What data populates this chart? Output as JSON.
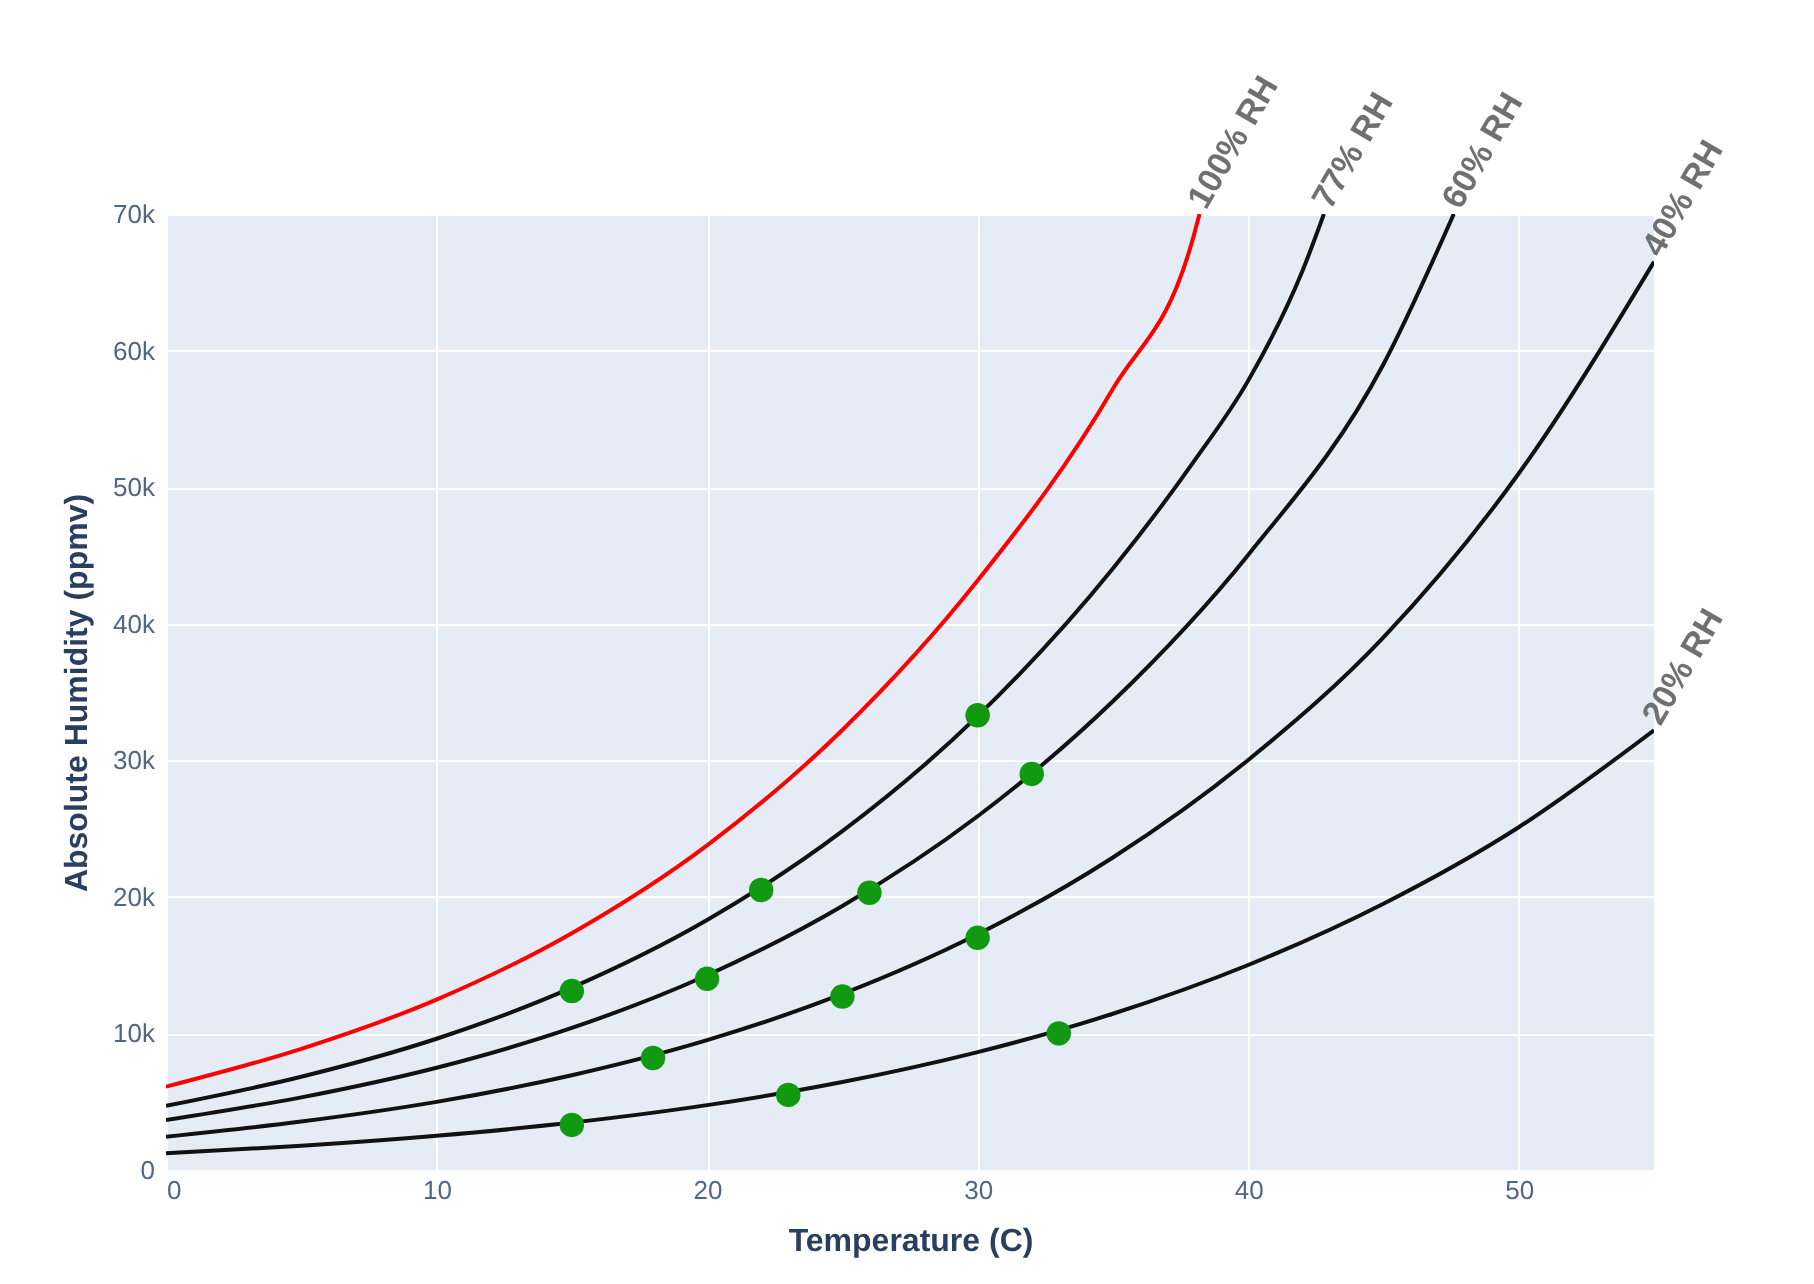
{
  "chart_data": {
    "type": "line",
    "xlabel": "Temperature (C)",
    "ylabel": "Absolute Humidity (ppmv)",
    "xlim": [
      0,
      55
    ],
    "ylim": [
      0,
      70000
    ],
    "xticks": [
      0,
      10,
      20,
      30,
      40,
      50
    ],
    "yticks": [
      0,
      {
        "value": 10000,
        "label": "10k"
      },
      {
        "value": 20000,
        "label": "20k"
      },
      {
        "value": 30000,
        "label": "30k"
      },
      {
        "value": 40000,
        "label": "40k"
      },
      {
        "value": 50000,
        "label": "50k"
      },
      {
        "value": 60000,
        "label": "60k"
      },
      {
        "value": 70000,
        "label": "70k"
      }
    ],
    "grid": true,
    "series": [
      {
        "name": "100% RH",
        "color": "#ff0000",
        "x": [
          0,
          5,
          10,
          15,
          20,
          25,
          30,
          35,
          38,
          38.2
        ],
        "values": [
          6100,
          8870,
          12480,
          17340,
          23770,
          32220,
          43160,
          57200,
          68500,
          70000
        ]
      },
      {
        "name": "77% RH",
        "color": "#111111",
        "x": [
          0,
          5,
          10,
          15,
          20,
          25,
          30,
          35,
          38,
          40,
          42,
          42.8
        ],
        "values": [
          4700,
          6830,
          9610,
          13350,
          18300,
          24810,
          33230,
          44040,
          51900,
          57800,
          65800,
          70000
        ]
      },
      {
        "name": "60% RH",
        "color": "#111111",
        "x": [
          0,
          5,
          10,
          15,
          20,
          25,
          30,
          35,
          40,
          45,
          47.6
        ],
        "values": [
          3660,
          5320,
          7490,
          10400,
          14260,
          19330,
          25900,
          34320,
          45040,
          59000,
          70000
        ]
      },
      {
        "name": "40% RH",
        "color": "#111111",
        "x": [
          0,
          5,
          10,
          15,
          20,
          25,
          30,
          35,
          40,
          45,
          50,
          55
        ],
        "values": [
          2440,
          3550,
          4990,
          6940,
          9510,
          12890,
          17260,
          22880,
          30020,
          39000,
          51000,
          66500
        ]
      },
      {
        "name": "20% RH",
        "color": "#111111",
        "x": [
          0,
          5,
          10,
          15,
          20,
          25,
          30,
          35,
          40,
          45,
          50,
          55
        ],
        "values": [
          1220,
          1770,
          2500,
          3470,
          4750,
          6440,
          8630,
          11440,
          15010,
          19500,
          25100,
          32200
        ]
      },
      {
        "type": "scatter",
        "marker": "circle",
        "color": "#119911",
        "x": [
          15,
          18,
          15,
          20,
          22,
          23,
          25,
          26,
          30,
          30,
          32,
          33
        ],
        "values": [
          13100,
          8200,
          3300,
          14000,
          20500,
          5500,
          12700,
          20300,
          33300,
          17000,
          29000,
          10000
        ]
      }
    ]
  }
}
